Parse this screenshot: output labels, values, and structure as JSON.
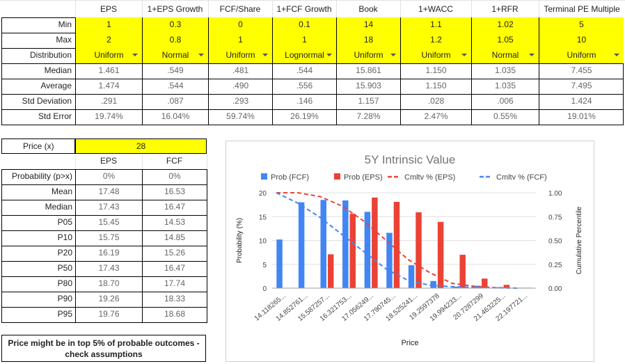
{
  "top_table": {
    "columns": [
      "EPS",
      "1+EPS Growth",
      "FCF/Share",
      "1+FCF Growth",
      "Book",
      "1+WACC",
      "1+RFR",
      "Terminal PE Multiple"
    ],
    "rows": [
      {
        "label": "Min",
        "values": [
          "1",
          "0.3",
          "0",
          "0.1",
          "14",
          "1.1",
          "1.02",
          "5"
        ]
      },
      {
        "label": "Max",
        "values": [
          "2",
          "0.8",
          "1",
          "1",
          "18",
          "1.2",
          "1.05",
          "10"
        ]
      },
      {
        "label": "Distribution",
        "values": [
          "Uniform",
          "Normal",
          "Uniform",
          "Lognormal",
          "Uniform",
          "Uniform",
          "Normal",
          "Uniform"
        ]
      },
      {
        "label": "Median",
        "values": [
          "1.461",
          ".549",
          ".481",
          ".544",
          "15.861",
          "1.150",
          "1.035",
          "7.455"
        ]
      },
      {
        "label": "Average",
        "values": [
          "1.474",
          ".544",
          ".490",
          ".556",
          "15.903",
          "1.150",
          "1.035",
          "7.495"
        ]
      },
      {
        "label": "Std Deviation",
        "values": [
          ".291",
          ".087",
          ".293",
          ".146",
          "1.157",
          ".028",
          ".006",
          "1.424"
        ]
      },
      {
        "label": "Std Error",
        "values": [
          "19.74%",
          "16.04%",
          "59.74%",
          "26.19%",
          "7.28%",
          "2.47%",
          "0.55%",
          "19.01%"
        ]
      }
    ]
  },
  "price_table": {
    "price_label": "Price (x)",
    "price_value": "28",
    "columns": [
      "EPS",
      "FCF"
    ],
    "rows": [
      {
        "label": "Probability (p>x)",
        "values": [
          "0%",
          "0%"
        ]
      },
      {
        "label": "Mean",
        "values": [
          "17.48",
          "16.53"
        ]
      },
      {
        "label": "Median",
        "values": [
          "17.43",
          "16.47"
        ]
      },
      {
        "label": "P05",
        "values": [
          "15.45",
          "14.53"
        ]
      },
      {
        "label": "P10",
        "values": [
          "15.75",
          "14.85"
        ]
      },
      {
        "label": "P20",
        "values": [
          "16.19",
          "15.26"
        ]
      },
      {
        "label": "P50",
        "values": [
          "17.43",
          "16.47"
        ]
      },
      {
        "label": "P80",
        "values": [
          "18.70",
          "17.74"
        ]
      },
      {
        "label": "P90",
        "values": [
          "19.26",
          "18.33"
        ]
      },
      {
        "label": "P95",
        "values": [
          "19.76",
          "18.68"
        ]
      }
    ]
  },
  "note": "Price might be in top 5% of probable outcomes - check assumptions",
  "colors": {
    "highlight": "#ffff00",
    "fcf": "#4285f4",
    "eps": "#ea4335",
    "grid": "#e2e2e2"
  },
  "chart_data": {
    "type": "bar",
    "title": "5Y Intrinsic Value",
    "xlabel": "Price",
    "ylabel": "Probability (%)",
    "y2label": "Cumulative Percentile",
    "categories": [
      "14.118265...",
      "14.852761...",
      "15.587257...",
      "16.321753...",
      "17.056249...",
      "17.790745...",
      "18.525241...",
      "19.2597378",
      "19.994233...",
      "20.7287299",
      "21.463225...",
      "22.197721..."
    ],
    "ylim": [
      0,
      20
    ],
    "yticks": [
      0,
      5,
      10,
      15,
      20
    ],
    "y2lim": [
      0,
      1
    ],
    "y2ticks": [
      "0.00",
      "0.25",
      "0.50",
      "0.75",
      "1.00"
    ],
    "legend_position": "top",
    "series": [
      {
        "name": "Prob (FCF)",
        "type": "bar",
        "axis": "left",
        "color": "#4285f4",
        "values": [
          10.2,
          18,
          18.5,
          18.4,
          16,
          11.6,
          4.8,
          1.5,
          0.3,
          0.5,
          0.2,
          0.1
        ]
      },
      {
        "name": "Prob (EPS)",
        "type": "bar",
        "axis": "left",
        "color": "#ea4335",
        "values": [
          0,
          0,
          7.1,
          15.6,
          19,
          18.1,
          15.9,
          13.9,
          7,
          2,
          0.7,
          0.1
        ]
      },
      {
        "name": "Cmltv % (EPS)",
        "type": "line",
        "axis": "right",
        "dash": "dashed",
        "color": "#ea4335",
        "values": [
          1.0,
          1.0,
          0.96,
          0.86,
          0.7,
          0.5,
          0.3,
          0.16,
          0.05,
          0.02,
          0.005,
          0.0
        ]
      },
      {
        "name": "Cmltv % (FCF)",
        "type": "line",
        "axis": "right",
        "dash": "dashed",
        "color": "#4285f4",
        "values": [
          1.0,
          0.89,
          0.74,
          0.56,
          0.38,
          0.2,
          0.08,
          0.03,
          0.015,
          0.008,
          0.003,
          0.0
        ]
      }
    ]
  }
}
